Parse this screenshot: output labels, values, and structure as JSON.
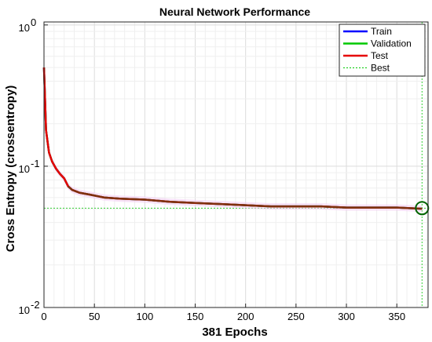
{
  "chart_data": {
    "type": "line",
    "title": "Neural Network Performance",
    "xlabel": "381 Epochs",
    "ylabel": "Cross Entropy  (crossentropy)",
    "xlim": [
      0,
      381
    ],
    "ylim": [
      0.01,
      1.05
    ],
    "yscale": "log",
    "grid": true,
    "legend_position": "top-right",
    "x_ticks": [
      0,
      50,
      100,
      150,
      200,
      250,
      300,
      350
    ],
    "x_tick_labels": [
      "0",
      "50",
      "100",
      "150",
      "200",
      "250",
      "300",
      "350"
    ],
    "y_ticks": [
      0.01,
      0.1,
      1
    ],
    "y_tick_labels": [
      "10",
      "10",
      "10"
    ],
    "y_tick_exponents": [
      "-2",
      "-1",
      "0"
    ],
    "series": [
      {
        "name": "Train",
        "color": "#0000ff",
        "x": [
          0,
          2,
          5,
          8,
          12,
          16,
          20,
          24,
          28,
          35,
          45,
          60,
          75,
          100,
          125,
          150,
          175,
          200,
          225,
          250,
          275,
          300,
          325,
          350,
          375
        ],
        "y": [
          0.5,
          0.18,
          0.125,
          0.108,
          0.096,
          0.088,
          0.082,
          0.072,
          0.068,
          0.065,
          0.063,
          0.06,
          0.059,
          0.058,
          0.056,
          0.055,
          0.054,
          0.053,
          0.052,
          0.052,
          0.052,
          0.051,
          0.051,
          0.051,
          0.05
        ]
      },
      {
        "name": "Validation",
        "color": "#00c800",
        "x": [
          0,
          2,
          5,
          8,
          12,
          16,
          20,
          24,
          28,
          35,
          45,
          60,
          75,
          100,
          125,
          150,
          175,
          200,
          225,
          250,
          275,
          300,
          325,
          350,
          375
        ],
        "y": [
          0.5,
          0.18,
          0.125,
          0.108,
          0.096,
          0.088,
          0.082,
          0.072,
          0.068,
          0.065,
          0.063,
          0.06,
          0.059,
          0.058,
          0.056,
          0.055,
          0.054,
          0.053,
          0.052,
          0.052,
          0.052,
          0.051,
          0.051,
          0.051,
          0.05
        ]
      },
      {
        "name": "Test",
        "color": "#e60000",
        "x": [
          0,
          2,
          5,
          8,
          12,
          16,
          20,
          24,
          28,
          35,
          45,
          60,
          75,
          100,
          125,
          150,
          175,
          200,
          225,
          250,
          275,
          300,
          325,
          350,
          375
        ],
        "y": [
          0.5,
          0.18,
          0.125,
          0.108,
          0.096,
          0.088,
          0.082,
          0.072,
          0.068,
          0.065,
          0.063,
          0.06,
          0.059,
          0.058,
          0.056,
          0.055,
          0.054,
          0.053,
          0.052,
          0.052,
          0.052,
          0.051,
          0.051,
          0.051,
          0.05
        ]
      }
    ],
    "best": {
      "name": "Best",
      "epoch": 375,
      "value": 0.0505,
      "color": "#00c800",
      "marker_color": "#006400"
    }
  }
}
